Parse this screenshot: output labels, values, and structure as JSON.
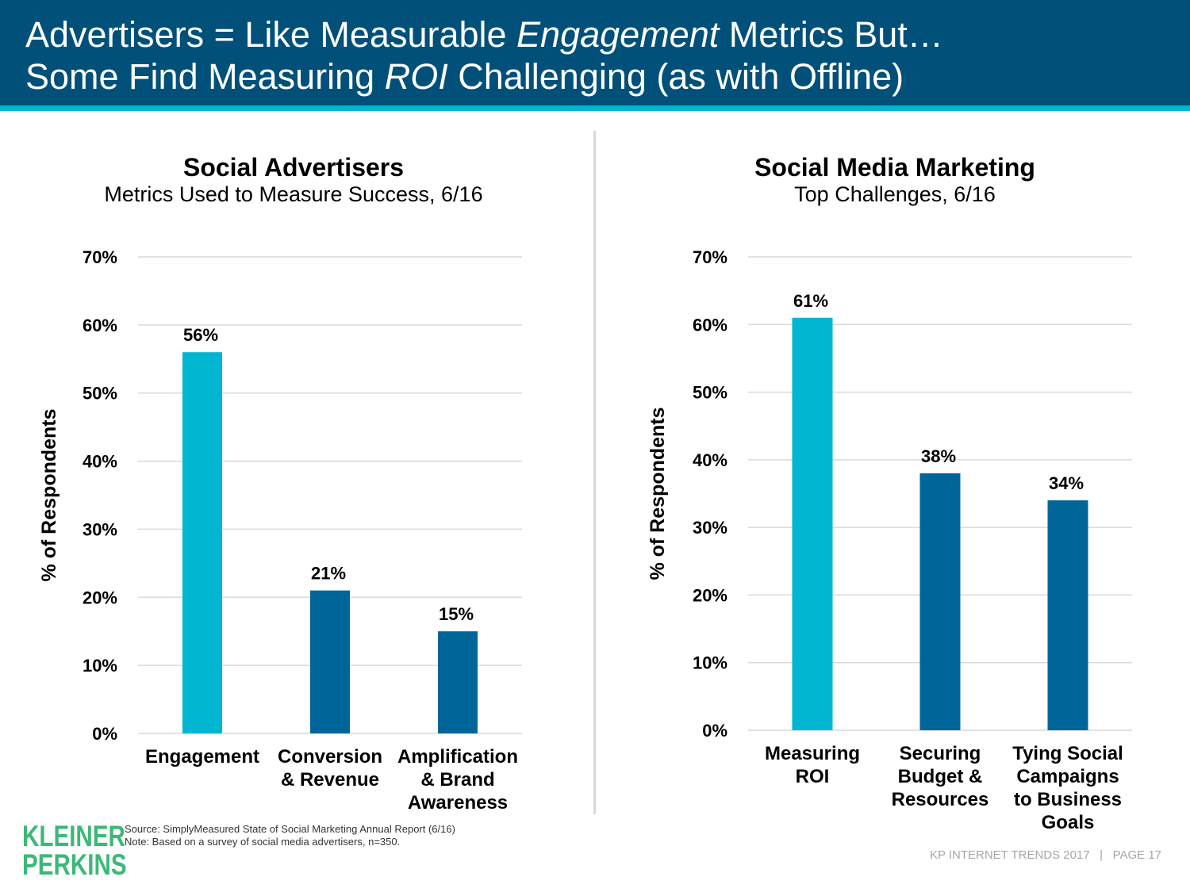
{
  "header": {
    "line1": {
      "part1": "Advertisers = Like Measurable ",
      "italic": "Engagement",
      "part2": " Metrics But…"
    },
    "line2": {
      "part1": "Some Find Measuring ",
      "italic": "ROI",
      "part2": " Challenging (as with Offline)"
    }
  },
  "chart_data": [
    {
      "type": "bar",
      "title": "Social Advertisers",
      "subtitle": "Metrics Used to Measure Success, 6/16",
      "ylabel": "% of Respondents",
      "xlabel": "",
      "ylim": [
        0,
        70
      ],
      "yticks": [
        0,
        10,
        20,
        30,
        40,
        50,
        60,
        70
      ],
      "tick_format": "{v}%",
      "grid": true,
      "categories": [
        [
          "Engagement"
        ],
        [
          "Conversion",
          "& Revenue"
        ],
        [
          "Amplification",
          "& Brand",
          "Awareness"
        ]
      ],
      "values": [
        56,
        21,
        15
      ],
      "data_labels": [
        "56%",
        "21%",
        "15%"
      ],
      "colors": [
        "#00b6d0",
        "#006699",
        "#006699"
      ]
    },
    {
      "type": "bar",
      "title": "Social Media Marketing",
      "subtitle": "Top Challenges, 6/16",
      "ylabel": "% of Respondents",
      "xlabel": "",
      "ylim": [
        0,
        70
      ],
      "yticks": [
        0,
        10,
        20,
        30,
        40,
        50,
        60,
        70
      ],
      "tick_format": "{v}%",
      "grid": true,
      "categories": [
        [
          "Measuring",
          "ROI"
        ],
        [
          "Securing",
          "Budget &",
          "Resources"
        ],
        [
          "Tying Social",
          "Campaigns",
          "to Business",
          "Goals"
        ]
      ],
      "values": [
        61,
        38,
        34
      ],
      "data_labels": [
        "61%",
        "38%",
        "34%"
      ],
      "colors": [
        "#00b6d0",
        "#006699",
        "#006699"
      ]
    }
  ],
  "logo": {
    "line1": "KLEINER",
    "line2": "PERKINS"
  },
  "source": {
    "line1": "Source: SimplyMeasured State of Social Marketing Annual Report (6/16)",
    "line2": "Note: Based on a survey of social media advertisers, n=350."
  },
  "footer": "KP INTERNET TRENDS 2017   |   PAGE 17",
  "colors": {
    "header_bg": "#005079",
    "header_rule": "#00b6d0",
    "accent_bar": "#00b6d0",
    "dark_bar": "#006699",
    "logo": "#3cb878"
  }
}
